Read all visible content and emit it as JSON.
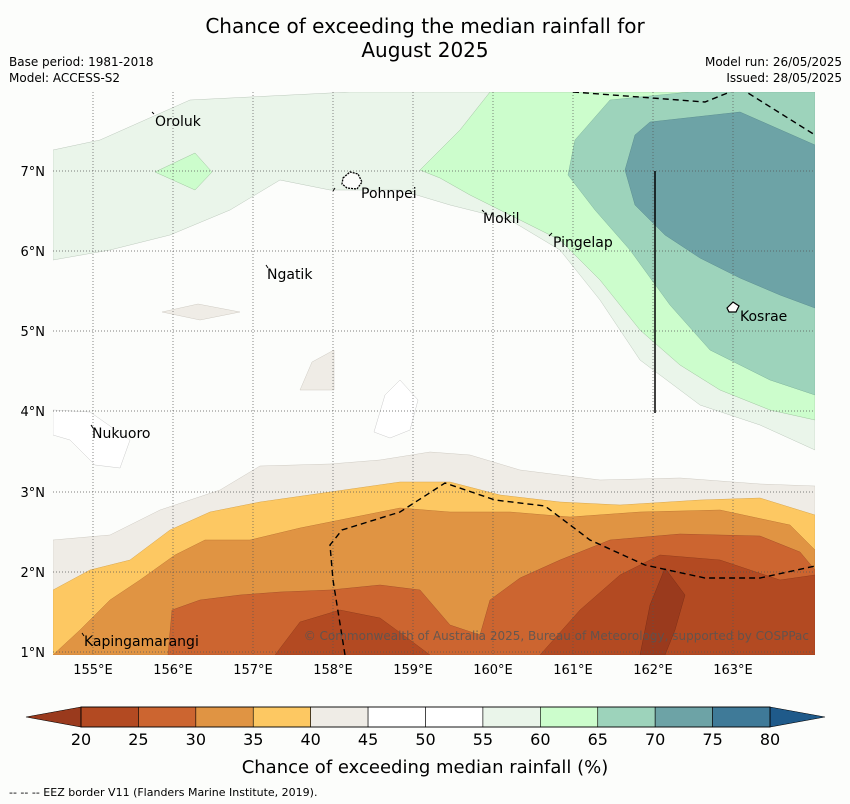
{
  "title": {
    "line1": "Chance of exceeding the median rainfall for",
    "line2": "August 2025"
  },
  "meta": {
    "base_period": "Base period: 1981-2018",
    "model": "Model: ACCESS-S2",
    "model_run": "Model run: 26/05/2025",
    "issued": "Issued: 28/05/2025"
  },
  "map": {
    "lon_labels": [
      "155°E",
      "156°E",
      "157°E",
      "158°E",
      "159°E",
      "160°E",
      "161°E",
      "162°E",
      "163°E"
    ],
    "lat_labels": [
      "1°N",
      "2°N",
      "3°N",
      "4°N",
      "5°N",
      "6°N",
      "7°N"
    ],
    "places": [
      "Oroluk",
      "Pohnpei",
      "Mokil",
      "Pingelap",
      "Ngatik",
      "Kosrae",
      "Nukuoro",
      "Kapingamarangi"
    ],
    "copyright": "© Commonwealth of Australia 2025, Bureau of Meteorology, supported by COSPPac"
  },
  "colorbar": {
    "ticks": [
      "20",
      "25",
      "30",
      "35",
      "40",
      "45",
      "50",
      "55",
      "60",
      "65",
      "70",
      "75",
      "80"
    ],
    "colors": [
      "#b34a22",
      "#cc6530",
      "#e09443",
      "#fdc862",
      "#efece6",
      "#ffffff",
      "#ffffff",
      "#eaf5ea",
      "#ccfdcc",
      "#9dd3bb",
      "#6da3a6",
      "#3f7a98"
    ],
    "under_color": "#9a3a1d",
    "over_color": "#1f5a8a",
    "label": "Chance of exceeding median rainfall (%)"
  },
  "footer": "--  --  -- EEZ border V11 (Flanders Marine Institute, 2019)."
}
